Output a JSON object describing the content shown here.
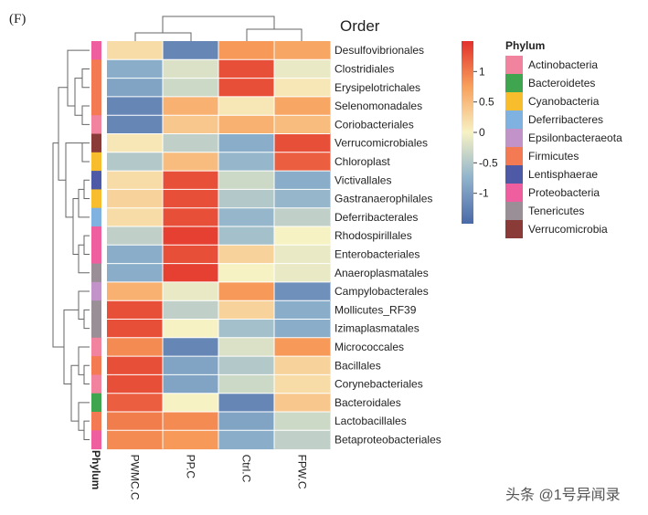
{
  "panel_label": "(F)",
  "watermark": "头条 @1号异闻录",
  "chart_data": {
    "type": "heatmap",
    "title": "Order",
    "columns": [
      "PWMC.C",
      "PP.C",
      "Ctrl.C",
      "FPW.C"
    ],
    "annotation_label": "Phylum",
    "rows": [
      {
        "name": "Desulfovibrionales",
        "phylum": "Proteobacteria",
        "values": [
          0.2,
          -1.2,
          0.8,
          0.7
        ]
      },
      {
        "name": "Clostridiales",
        "phylum": "Firmicutes",
        "values": [
          -0.8,
          -0.2,
          1.3,
          -0.1
        ]
      },
      {
        "name": "Erysipelotrichales",
        "phylum": "Firmicutes",
        "values": [
          -0.9,
          -0.3,
          1.3,
          0.1
        ]
      },
      {
        "name": "Selenomonadales",
        "phylum": "Firmicutes",
        "values": [
          -1.2,
          0.6,
          0.1,
          0.7
        ]
      },
      {
        "name": "Coriobacteriales",
        "phylum": "Actinobacteria",
        "values": [
          -1.2,
          0.4,
          0.6,
          0.5
        ]
      },
      {
        "name": "Verrucomicrobiales",
        "phylum": "Verrucomicrobia",
        "values": [
          0.1,
          -0.4,
          -0.8,
          1.3
        ]
      },
      {
        "name": "Chloroplast",
        "phylum": "Cyanobacteria",
        "values": [
          -0.5,
          0.5,
          -0.7,
          1.2
        ]
      },
      {
        "name": "Victivallales",
        "phylum": "Lentisphaerae",
        "values": [
          0.2,
          1.3,
          -0.3,
          -0.8
        ]
      },
      {
        "name": "Gastranaerophilales",
        "phylum": "Cyanobacteria",
        "values": [
          0.3,
          1.3,
          -0.5,
          -0.7
        ]
      },
      {
        "name": "Deferribacterales",
        "phylum": "Deferribacteres",
        "values": [
          0.2,
          1.3,
          -0.7,
          -0.4
        ]
      },
      {
        "name": "Rhodospirillales",
        "phylum": "Proteobacteria",
        "values": [
          -0.4,
          1.4,
          -0.6,
          0.0
        ]
      },
      {
        "name": "Enterobacteriales",
        "phylum": "Proteobacteria",
        "values": [
          -0.8,
          1.3,
          0.3,
          -0.1
        ]
      },
      {
        "name": "Anaeroplasmatales",
        "phylum": "Tenericutes",
        "values": [
          -0.8,
          1.4,
          0.0,
          -0.1
        ]
      },
      {
        "name": "Campylobacterales",
        "phylum": "Epsilonbacteraeota",
        "values": [
          0.6,
          -0.1,
          0.8,
          -1.1
        ]
      },
      {
        "name": "Mollicutes_RF39",
        "phylum": "Tenericutes",
        "values": [
          1.3,
          -0.4,
          0.3,
          -0.8
        ]
      },
      {
        "name": "Izimaplasmatales",
        "phylum": "Tenericutes",
        "values": [
          1.3,
          0.0,
          -0.6,
          -0.8
        ]
      },
      {
        "name": "Micrococcales",
        "phylum": "Actinobacteria",
        "values": [
          0.9,
          -1.2,
          -0.2,
          0.8
        ]
      },
      {
        "name": "Bacillales",
        "phylum": "Firmicutes",
        "values": [
          1.3,
          -0.9,
          -0.5,
          0.3
        ]
      },
      {
        "name": "Corynebacteriales",
        "phylum": "Actinobacteria",
        "values": [
          1.3,
          -0.9,
          -0.3,
          0.2
        ]
      },
      {
        "name": "Bacteroidales",
        "phylum": "Bacteroidetes",
        "values": [
          1.2,
          0.0,
          -1.2,
          0.4
        ]
      },
      {
        "name": "Lactobacillales",
        "phylum": "Firmicutes",
        "values": [
          1.0,
          0.9,
          -0.9,
          -0.3
        ]
      },
      {
        "name": "Betaproteobacteriales",
        "phylum": "Proteobacteria",
        "values": [
          0.9,
          0.8,
          -0.8,
          -0.4
        ]
      }
    ],
    "color_scale": {
      "range": [
        -1.5,
        1.5
      ],
      "ticks": [
        1,
        0.5,
        0,
        -0.5,
        -1
      ],
      "tick_labels": [
        "1",
        "0.5",
        "0",
        "-0.5",
        "-1"
      ],
      "stops": [
        {
          "value": -1.5,
          "color": "#4a69a8"
        },
        {
          "value": -0.75,
          "color": "#8fb3cc"
        },
        {
          "value": 0,
          "color": "#f7f2c4"
        },
        {
          "value": 0.75,
          "color": "#f8a15c"
        },
        {
          "value": 1.5,
          "color": "#e2312c"
        }
      ]
    },
    "legend": {
      "title": "Phylum",
      "position": "right",
      "items": [
        {
          "label": "Actinobacteria",
          "color": "#f2839f"
        },
        {
          "label": "Bacteroidetes",
          "color": "#3fa64f"
        },
        {
          "label": "Cyanobacteria",
          "color": "#f8bd2c"
        },
        {
          "label": "Deferribacteres",
          "color": "#7fb2e1"
        },
        {
          "label": "Epsilonbacteraeota",
          "color": "#c293c9"
        },
        {
          "label": "Firmicutes",
          "color": "#f47a53"
        },
        {
          "label": "Lentisphaerae",
          "color": "#4e5aa5"
        },
        {
          "label": "Proteobacteria",
          "color": "#ef5f9f"
        },
        {
          "label": "Tenericutes",
          "color": "#9a8f97"
        },
        {
          "label": "Verrucomicrobia",
          "color": "#8a3b37"
        }
      ]
    }
  }
}
